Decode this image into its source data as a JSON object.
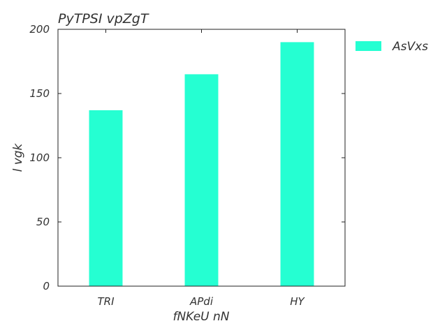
{
  "chart_data": {
    "type": "bar",
    "title": "PyTPSI  vpZgT",
    "xlabel": "fNKeU nN",
    "ylabel": "l vgk",
    "categories": [
      "TRI",
      "APdi",
      "HY"
    ],
    "series": [
      {
        "name": "AsVxs",
        "values": [
          137,
          165,
          190
        ],
        "color": "#25ffd2"
      }
    ],
    "ylim": [
      0,
      200
    ],
    "yticks": [
      "0",
      "50",
      "100",
      "150",
      "200"
    ],
    "grid": false,
    "legend": "outside-right"
  }
}
